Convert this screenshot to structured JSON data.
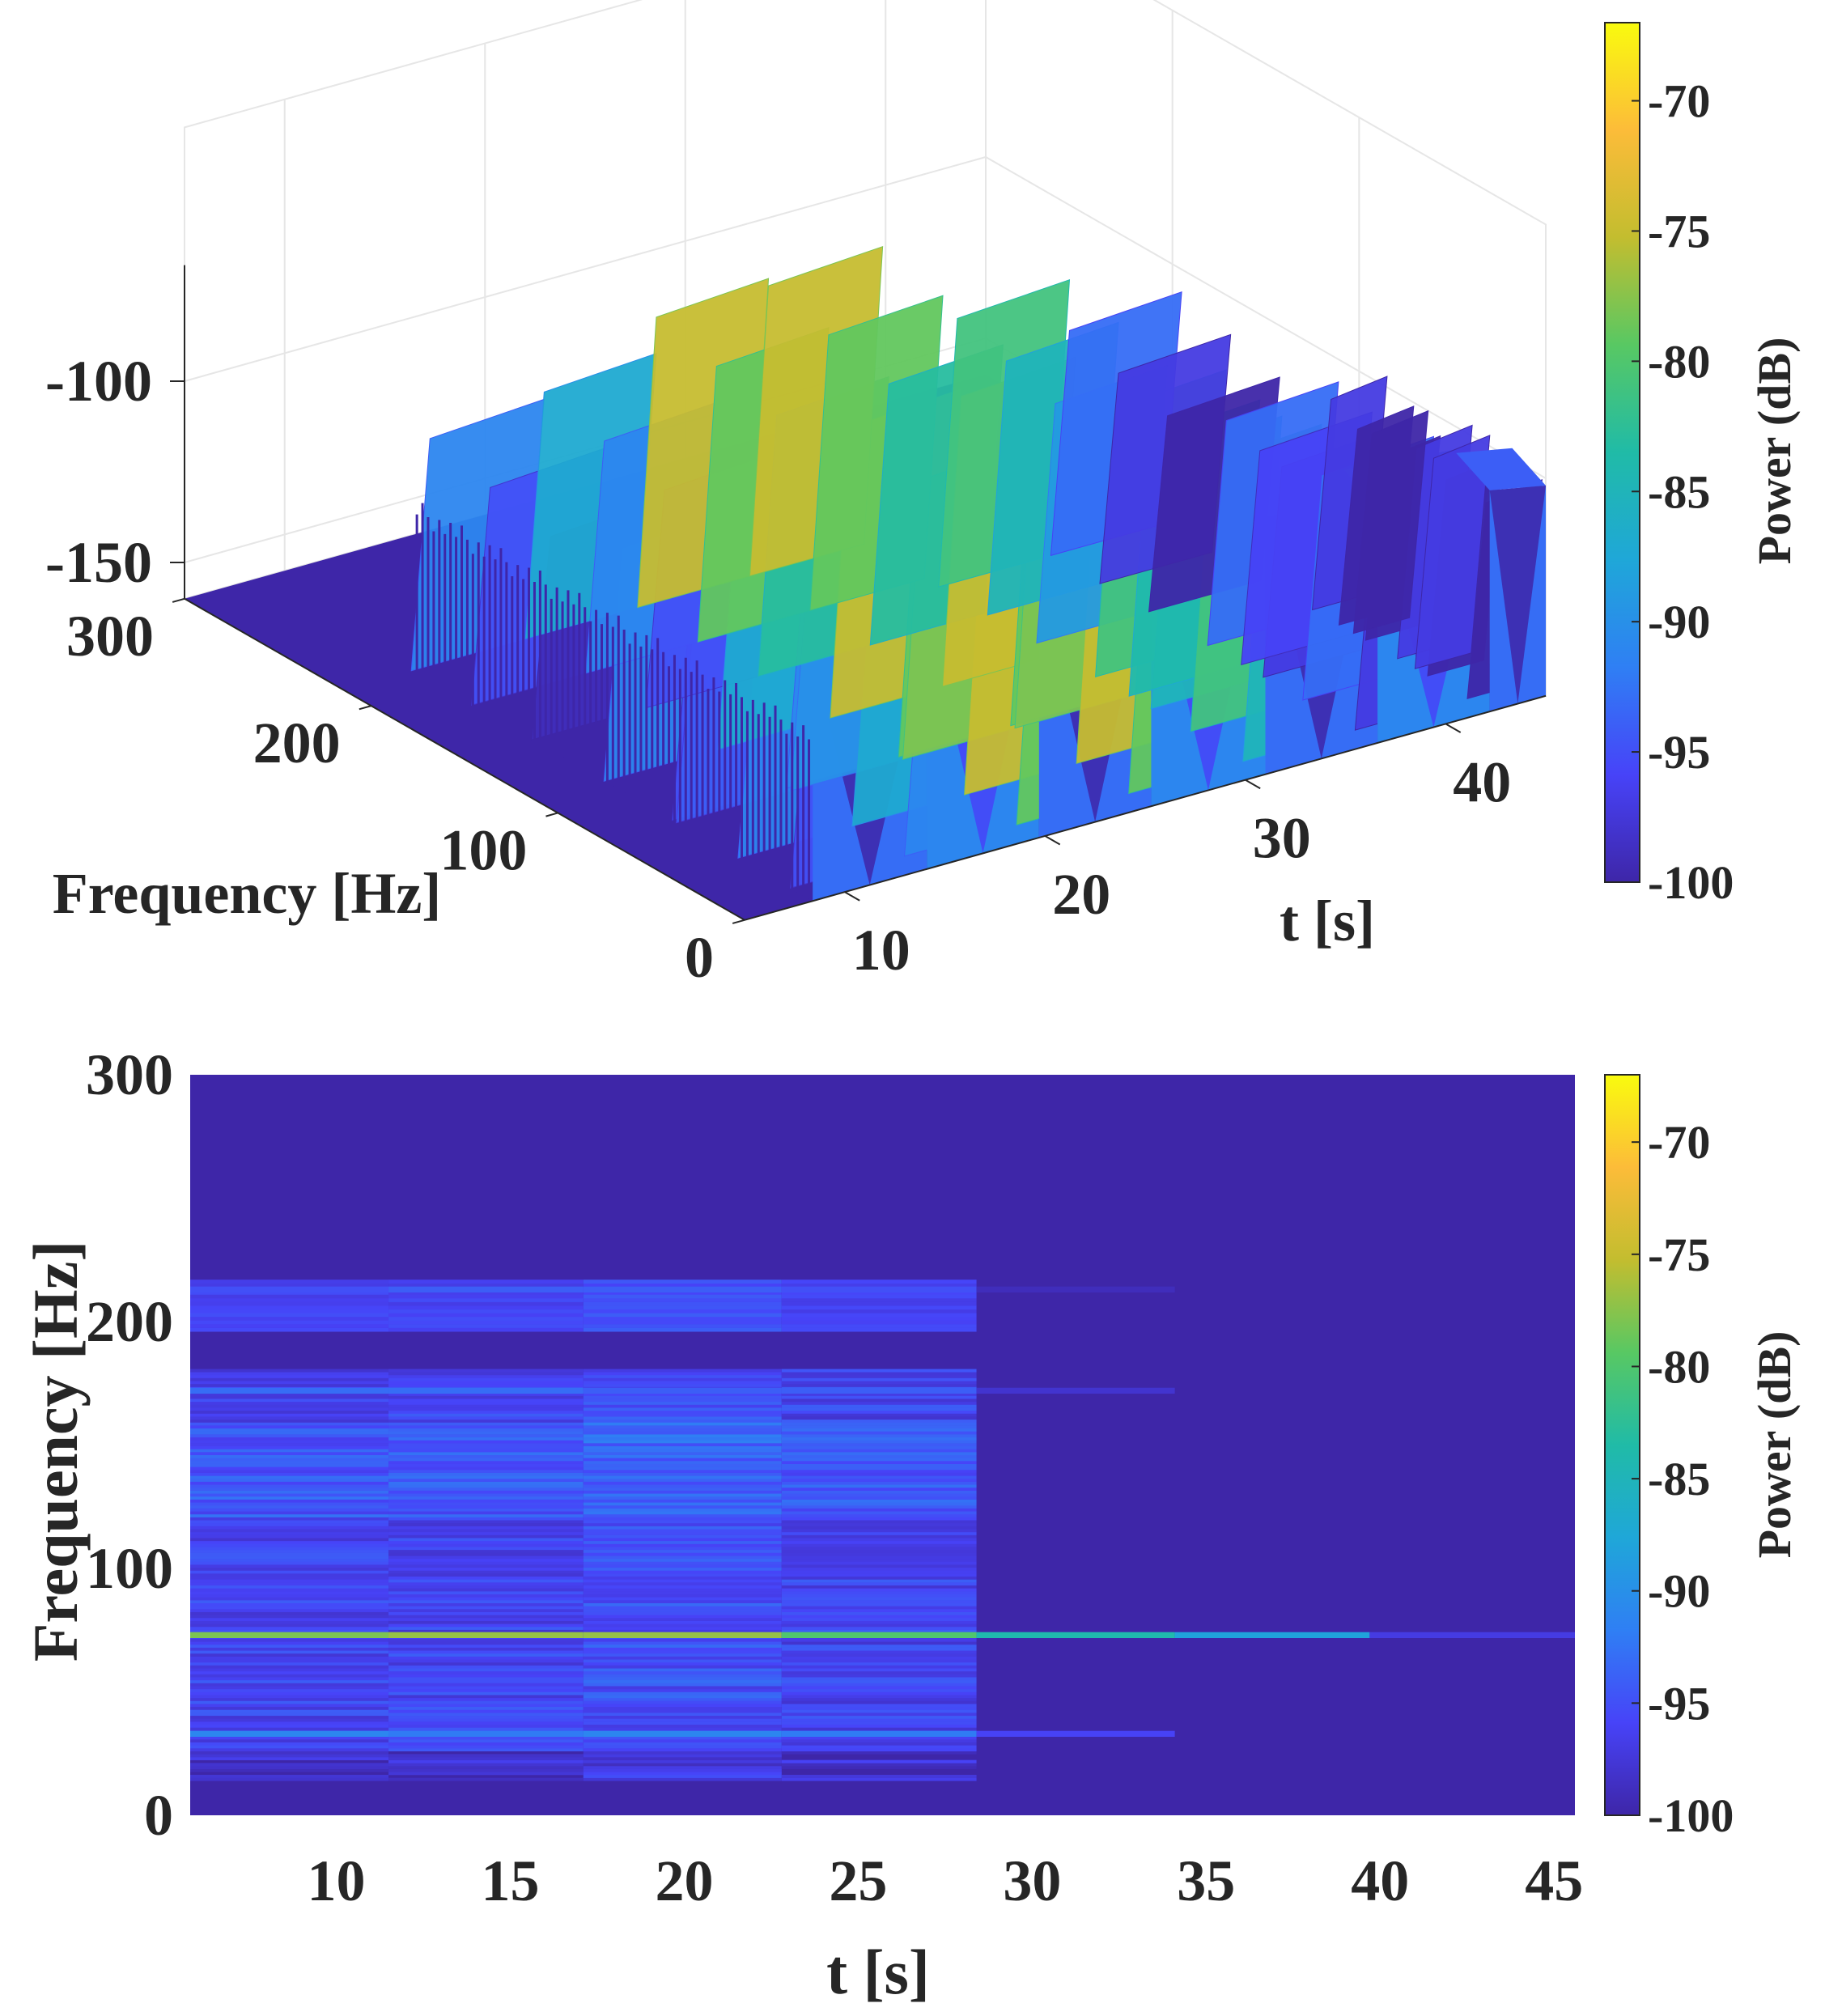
{
  "figure": {
    "panels": [
      "surface-3d",
      "spectrogram-2d"
    ]
  },
  "colors": {
    "colormap": [
      "#3e26a8",
      "#4743f8",
      "#2f7ff4",
      "#1fa7d8",
      "#20bba7",
      "#58c863",
      "#c3bd2f",
      "#fcbc39",
      "#f9fb0e"
    ],
    "axis": "#262626",
    "grid": "#e6e6e6"
  },
  "chart_data": [
    {
      "type": "surface",
      "xlabel": "t [s]",
      "ylabel": "Frequency [Hz]",
      "zlabel": "",
      "x_ticks": [
        10,
        20,
        30,
        40
      ],
      "y_ticks": [
        0,
        100,
        200,
        300
      ],
      "z_ticks": [
        -100,
        -150
      ],
      "xlim": [
        5,
        45
      ],
      "ylim": [
        0,
        300
      ],
      "zlim": [
        -160,
        -50
      ],
      "time_segments": [
        8.4,
        14.1,
        19.7,
        25.3,
        31.0,
        36.6,
        42.2,
        45.0
      ],
      "peak_power_per_segment_db": [
        -88,
        -84,
        -72,
        -72,
        -78,
        -90,
        -94,
        -85
      ],
      "colorbar": {
        "label": "Power (dB)",
        "ticks": [
          -70,
          -75,
          -80,
          -85,
          -90,
          -95,
          -100
        ],
        "range": [
          -100,
          -67
        ]
      }
    },
    {
      "type": "heatmap",
      "xlabel": "t [s]",
      "ylabel": "Frequency [Hz]",
      "x_ticks": [
        10,
        15,
        20,
        25,
        30,
        35,
        40,
        45
      ],
      "y_ticks": [
        0,
        100,
        200,
        300
      ],
      "xlim": [
        5.8,
        45.6
      ],
      "ylim": [
        0,
        300
      ],
      "time_segments": [
        5.8,
        11.5,
        17.1,
        22.8,
        28.4,
        34.1,
        39.7,
        45.6
      ],
      "lines": [
        {
          "freq_hz": 73,
          "power_db": [
            -78,
            -77,
            -77,
            -80,
            -84,
            -88,
            -97
          ]
        },
        {
          "freq_hz": 33,
          "power_db": [
            -91,
            -92,
            -91,
            -92,
            -96,
            -100,
            -100
          ]
        },
        {
          "freq_hz": 172,
          "power_db": [
            -93,
            -93,
            -94,
            -94,
            -98,
            -100,
            -100
          ]
        },
        {
          "freq_hz": 213,
          "power_db": [
            -95,
            -94,
            -94,
            -95,
            -99,
            -100,
            -100
          ]
        }
      ],
      "band_energy_db": [
        -95,
        -95,
        -94,
        -95,
        -99,
        -100,
        -100
      ],
      "colorbar": {
        "label": "Power (dB)",
        "ticks": [
          -70,
          -75,
          -80,
          -85,
          -90,
          -95,
          -100
        ],
        "range": [
          -100,
          -67
        ]
      }
    }
  ]
}
